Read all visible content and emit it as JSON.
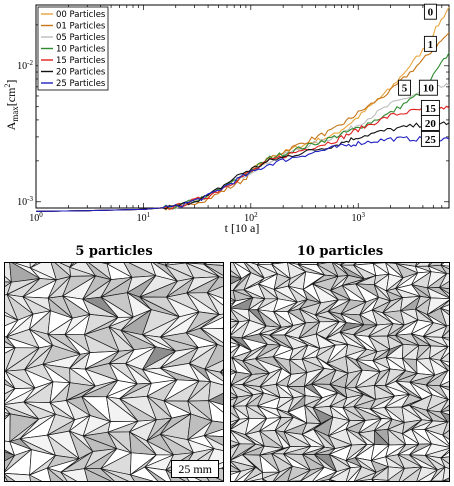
{
  "chart_data": {
    "type": "line",
    "xlabel": "t [10 a]",
    "ylabel_main": "A",
    "ylabel_sub": "max",
    "ylabel_unit": "[cm",
    "ylabel_sup": "2",
    "ylabel_close": "]",
    "x_scale": "log",
    "y_scale": "log",
    "xlim": [
      1,
      7000
    ],
    "ylim": [
      0.0009,
      0.028
    ],
    "x_ticks": [
      {
        "v": 1,
        "base": "10",
        "exp": "0"
      },
      {
        "v": 10,
        "base": "10",
        "exp": "1"
      },
      {
        "v": 100,
        "base": "10",
        "exp": "2"
      },
      {
        "v": 1000,
        "base": "10",
        "exp": "3"
      }
    ],
    "y_ticks": [
      {
        "v": 0.001,
        "base": "10",
        "exp": "-3"
      },
      {
        "v": 0.01,
        "base": "10",
        "exp": "-2"
      }
    ],
    "legend_position": "top-left",
    "series": [
      {
        "name": "00 Particles",
        "color": "#e8a33d",
        "x": [
          1,
          3,
          10,
          20,
          40,
          80,
          150,
          300,
          600,
          1000,
          2000,
          4000,
          7000
        ],
        "y": [
          0.00085,
          0.00086,
          0.00088,
          0.00092,
          0.0011,
          0.0015,
          0.0021,
          0.0026,
          0.0031,
          0.0042,
          0.0068,
          0.013,
          0.027
        ]
      },
      {
        "name": "01 Particles",
        "color": "#c77518",
        "x": [
          1,
          3,
          10,
          20,
          40,
          80,
          150,
          300,
          600,
          1000,
          2000,
          4000,
          7000
        ],
        "y": [
          0.00085,
          0.00086,
          0.00088,
          0.00091,
          0.00105,
          0.0014,
          0.0021,
          0.0027,
          0.0034,
          0.0045,
          0.0065,
          0.011,
          0.0175
        ]
      },
      {
        "name": "05 Particles",
        "color": "#bdbdbd",
        "x": [
          1,
          3,
          10,
          20,
          40,
          80,
          150,
          300,
          600,
          1000,
          2000,
          4000,
          7000
        ],
        "y": [
          0.00085,
          0.00086,
          0.00088,
          0.00092,
          0.0011,
          0.0015,
          0.002,
          0.0025,
          0.003,
          0.0037,
          0.0052,
          0.0065,
          0.0072
        ]
      },
      {
        "name": "10 Particles",
        "color": "#2e8b2e",
        "x": [
          1,
          3,
          10,
          20,
          40,
          80,
          150,
          300,
          600,
          1000,
          2000,
          4000,
          7000
        ],
        "y": [
          0.00085,
          0.00086,
          0.00088,
          0.00092,
          0.0011,
          0.0015,
          0.0021,
          0.0025,
          0.003,
          0.0035,
          0.0045,
          0.0065,
          0.0125
        ]
      },
      {
        "name": "15 Particles",
        "color": "#e02020",
        "x": [
          1,
          3,
          10,
          20,
          40,
          80,
          150,
          300,
          600,
          1000,
          2000,
          4000,
          7000
        ],
        "y": [
          0.00085,
          0.00086,
          0.00088,
          0.00092,
          0.0011,
          0.0015,
          0.002,
          0.0024,
          0.0028,
          0.0034,
          0.0043,
          0.0048,
          0.0049
        ]
      },
      {
        "name": "20 Particles",
        "color": "#111111",
        "x": [
          1,
          3,
          10,
          20,
          40,
          80,
          150,
          300,
          600,
          1000,
          2000,
          4000,
          7000
        ],
        "y": [
          0.00085,
          0.00086,
          0.00088,
          0.00092,
          0.0011,
          0.0016,
          0.002,
          0.0023,
          0.0026,
          0.003,
          0.0034,
          0.0037,
          0.0038
        ]
      },
      {
        "name": "25 Particles",
        "color": "#2020c0",
        "x": [
          1,
          3,
          10,
          20,
          40,
          80,
          150,
          300,
          600,
          1000,
          2000,
          4000,
          7000
        ],
        "y": [
          0.00085,
          0.00086,
          0.00088,
          0.00092,
          0.0011,
          0.0015,
          0.0019,
          0.0022,
          0.0025,
          0.0027,
          0.0029,
          0.0029,
          0.0029
        ]
      }
    ],
    "end_labels": [
      {
        "text": "0",
        "x": 4700,
        "y": 0.025
      },
      {
        "text": "1",
        "x": 4700,
        "y": 0.0145
      },
      {
        "text": "5",
        "x": 2700,
        "y": 0.0069
      },
      {
        "text": "10",
        "x": 4500,
        "y": 0.0069
      },
      {
        "text": "15",
        "x": 4700,
        "y": 0.0049
      },
      {
        "text": "20",
        "x": 4700,
        "y": 0.0038
      },
      {
        "text": "25",
        "x": 4700,
        "y": 0.0029
      }
    ]
  },
  "panels": {
    "left_title": "5 particles",
    "right_title": "10 particles",
    "scale_bar": "25 mm"
  }
}
